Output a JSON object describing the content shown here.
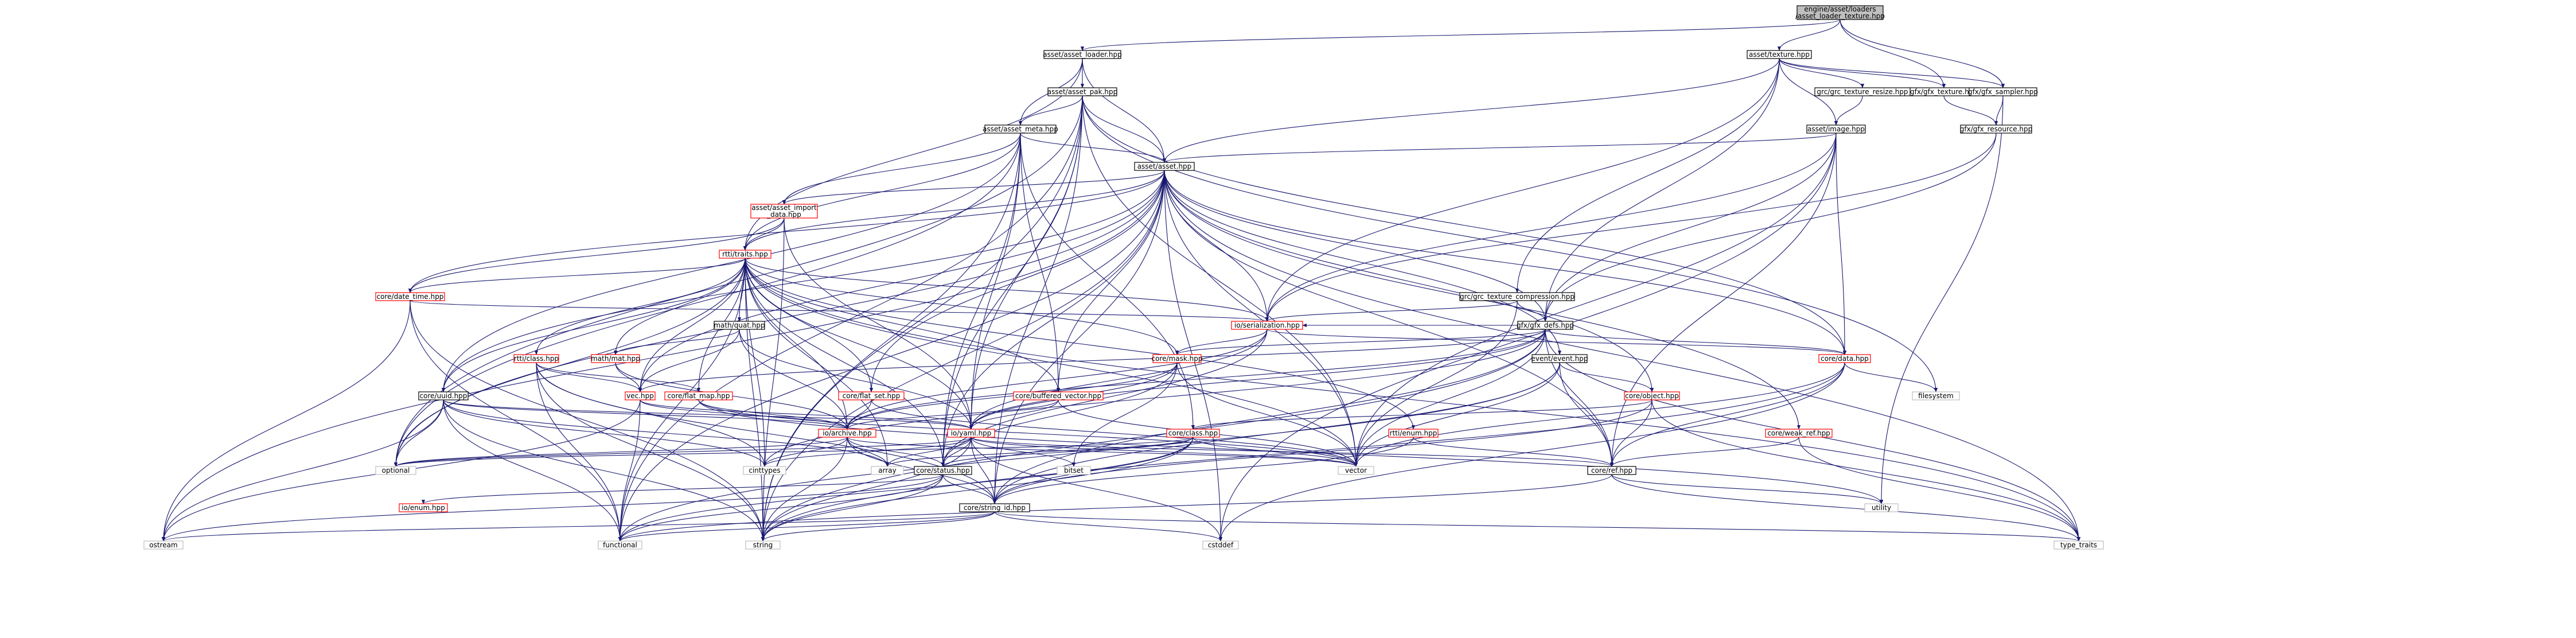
{
  "colors": {
    "edge": "#191970",
    "root_fill": "#bfbfbf",
    "documented_border": "#000000",
    "undocumented_border": "#ff0000",
    "external_border": "#bfbfbf"
  },
  "nodes": [
    {
      "id": "root",
      "lines": [
        "engine/asset/loaders",
        "/asset_loader_texture.hpp"
      ],
      "kind": "root"
    },
    {
      "id": "asset_loader",
      "lines": [
        "asset/asset_loader.hpp"
      ],
      "kind": "doc"
    },
    {
      "id": "asset_texture",
      "lines": [
        "asset/texture.hpp"
      ],
      "kind": "doc"
    },
    {
      "id": "gfx_texture",
      "lines": [
        "gfx/gfx_texture.hpp"
      ],
      "kind": "doc"
    },
    {
      "id": "gfx_sampler",
      "lines": [
        "gfx/gfx_sampler.hpp"
      ],
      "kind": "doc"
    },
    {
      "id": "asset_pak",
      "lines": [
        "asset/asset_pak.hpp"
      ],
      "kind": "doc"
    },
    {
      "id": "grc_texture_resize",
      "lines": [
        "grc/grc_texture_resize.hpp"
      ],
      "kind": "doc"
    },
    {
      "id": "gfx_resource",
      "lines": [
        "gfx/gfx_resource.hpp"
      ],
      "kind": "doc"
    },
    {
      "id": "asset_meta",
      "lines": [
        "asset/asset_meta.hpp"
      ],
      "kind": "doc"
    },
    {
      "id": "asset_image",
      "lines": [
        "asset/image.hpp"
      ],
      "kind": "doc"
    },
    {
      "id": "asset_asset",
      "lines": [
        "asset/asset.hpp"
      ],
      "kind": "doc"
    },
    {
      "id": "asset_import_data",
      "lines": [
        "asset/asset_import",
        "_data.hpp"
      ],
      "kind": "red"
    },
    {
      "id": "rtti_traits",
      "lines": [
        "rtti/traits.hpp"
      ],
      "kind": "red"
    },
    {
      "id": "core_date_time",
      "lines": [
        "core/date_time.hpp"
      ],
      "kind": "red"
    },
    {
      "id": "grc_texture_compression",
      "lines": [
        "grc/grc_texture_compression.hpp"
      ],
      "kind": "doc"
    },
    {
      "id": "io_serialization",
      "lines": [
        "io/serialization.hpp"
      ],
      "kind": "red"
    },
    {
      "id": "math_quat",
      "lines": [
        "math/quat.hpp"
      ],
      "kind": "doc"
    },
    {
      "id": "gfx_defs",
      "lines": [
        "gfx/gfx_defs.hpp"
      ],
      "kind": "doc"
    },
    {
      "id": "rtti_class",
      "lines": [
        "rtti/class.hpp"
      ],
      "kind": "red"
    },
    {
      "id": "math_mat",
      "lines": [
        "math/mat.hpp"
      ],
      "kind": "red"
    },
    {
      "id": "core_mask",
      "lines": [
        "core/mask.hpp"
      ],
      "kind": "red"
    },
    {
      "id": "event_event",
      "lines": [
        "event/event.hpp"
      ],
      "kind": "doc"
    },
    {
      "id": "core_data",
      "lines": [
        "core/data.hpp"
      ],
      "kind": "red"
    },
    {
      "id": "vec",
      "lines": [
        "vec.hpp"
      ],
      "kind": "red"
    },
    {
      "id": "core_flat_set",
      "lines": [
        "core/flat_set.hpp"
      ],
      "kind": "red"
    },
    {
      "id": "core_uuid",
      "lines": [
        "core/uuid.hpp"
      ],
      "kind": "doc"
    },
    {
      "id": "core_flat_map",
      "lines": [
        "core/flat_map.hpp"
      ],
      "kind": "red"
    },
    {
      "id": "core_buffered_vector",
      "lines": [
        "core/buffered_vector.hpp"
      ],
      "kind": "red"
    },
    {
      "id": "core_object",
      "lines": [
        "core/object.hpp"
      ],
      "kind": "red"
    },
    {
      "id": "filesystem",
      "lines": [
        "filesystem"
      ],
      "kind": "sys"
    },
    {
      "id": "io_archive",
      "lines": [
        "io/archive.hpp"
      ],
      "kind": "red"
    },
    {
      "id": "io_yaml",
      "lines": [
        "io/yaml.hpp"
      ],
      "kind": "red"
    },
    {
      "id": "core_class",
      "lines": [
        "core/class.hpp"
      ],
      "kind": "red"
    },
    {
      "id": "rtti_enum",
      "lines": [
        "rtti/enum.hpp"
      ],
      "kind": "red"
    },
    {
      "id": "core_weak_ref",
      "lines": [
        "core/weak_ref.hpp"
      ],
      "kind": "red"
    },
    {
      "id": "optional",
      "lines": [
        "optional"
      ],
      "kind": "sys"
    },
    {
      "id": "cinttypes",
      "lines": [
        "cinttypes"
      ],
      "kind": "sys"
    },
    {
      "id": "array",
      "lines": [
        "array"
      ],
      "kind": "sys"
    },
    {
      "id": "core_status",
      "lines": [
        "core/status.hpp"
      ],
      "kind": "doc"
    },
    {
      "id": "bitset",
      "lines": [
        "bitset"
      ],
      "kind": "sys"
    },
    {
      "id": "vector",
      "lines": [
        "vector"
      ],
      "kind": "sys"
    },
    {
      "id": "core_ref",
      "lines": [
        "core/ref.hpp"
      ],
      "kind": "doc"
    },
    {
      "id": "io_enum",
      "lines": [
        "io/enum.hpp"
      ],
      "kind": "red"
    },
    {
      "id": "core_string_id",
      "lines": [
        "core/string_id.hpp"
      ],
      "kind": "doc"
    },
    {
      "id": "utility",
      "lines": [
        "utility"
      ],
      "kind": "sys"
    },
    {
      "id": "ostream",
      "lines": [
        "ostream"
      ],
      "kind": "sys"
    },
    {
      "id": "functional",
      "lines": [
        "functional"
      ],
      "kind": "sys"
    },
    {
      "id": "string",
      "lines": [
        "string"
      ],
      "kind": "sys"
    },
    {
      "id": "cstddef",
      "lines": [
        "cstddef"
      ],
      "kind": "sys"
    },
    {
      "id": "type_traits",
      "lines": [
        "type_traits"
      ],
      "kind": "sys"
    }
  ],
  "edges": [
    [
      "root",
      "asset_loader"
    ],
    [
      "root",
      "asset_texture"
    ],
    [
      "root",
      "gfx_texture"
    ],
    [
      "root",
      "gfx_sampler"
    ],
    [
      "asset_loader",
      "asset_pak"
    ],
    [
      "asset_loader",
      "asset_meta"
    ],
    [
      "asset_loader",
      "asset_asset"
    ],
    [
      "asset_loader",
      "rtti_traits"
    ],
    [
      "asset_texture",
      "asset_asset"
    ],
    [
      "asset_texture",
      "gfx_texture"
    ],
    [
      "asset_texture",
      "gfx_sampler"
    ],
    [
      "asset_texture",
      "asset_image"
    ],
    [
      "asset_texture",
      "gfx_defs"
    ],
    [
      "asset_texture",
      "io_serialization"
    ],
    [
      "asset_texture",
      "grc_texture_resize"
    ],
    [
      "asset_texture",
      "grc_texture_compression"
    ],
    [
      "gfx_texture",
      "gfx_resource"
    ],
    [
      "gfx_sampler",
      "gfx_resource"
    ],
    [
      "gfx_sampler",
      "utility"
    ],
    [
      "gfx_resource",
      "gfx_defs"
    ],
    [
      "gfx_resource",
      "io_serialization"
    ],
    [
      "grc_texture_resize",
      "asset_image"
    ],
    [
      "asset_pak",
      "asset_meta"
    ],
    [
      "asset_pak",
      "asset_asset"
    ],
    [
      "asset_pak",
      "io_yaml"
    ],
    [
      "asset_pak",
      "core_status"
    ],
    [
      "asset_pak",
      "optional"
    ],
    [
      "asset_pak",
      "string"
    ],
    [
      "asset_pak",
      "vector"
    ],
    [
      "asset_pak",
      "filesystem"
    ],
    [
      "asset_pak",
      "core_data"
    ],
    [
      "asset_pak",
      "core_string_id"
    ],
    [
      "asset_pak",
      "functional"
    ],
    [
      "asset_meta",
      "asset_asset"
    ],
    [
      "asset_meta",
      "asset_import_data"
    ],
    [
      "asset_meta",
      "rtti_traits"
    ],
    [
      "asset_meta",
      "core_uuid"
    ],
    [
      "asset_meta",
      "core_buffered_vector"
    ],
    [
      "asset_meta",
      "io_yaml"
    ],
    [
      "asset_meta",
      "core_class"
    ],
    [
      "asset_meta",
      "core_status"
    ],
    [
      "asset_meta",
      "string"
    ],
    [
      "asset_meta",
      "optional"
    ],
    [
      "asset_image",
      "asset_asset"
    ],
    [
      "asset_image",
      "core_data"
    ],
    [
      "asset_image",
      "gfx_defs"
    ],
    [
      "asset_image",
      "io_serialization"
    ],
    [
      "asset_image",
      "core_ref"
    ],
    [
      "asset_image",
      "vector"
    ],
    [
      "asset_image",
      "cstddef"
    ],
    [
      "asset_asset",
      "asset_import_data"
    ],
    [
      "asset_asset",
      "rtti_traits"
    ],
    [
      "asset_asset",
      "core_date_time"
    ],
    [
      "asset_asset",
      "io_serialization"
    ],
    [
      "asset_asset",
      "core_object"
    ],
    [
      "asset_asset",
      "core_uuid"
    ],
    [
      "asset_asset",
      "core_ref"
    ],
    [
      "asset_asset",
      "core_data"
    ],
    [
      "asset_asset",
      "core_string_id"
    ],
    [
      "asset_asset",
      "core_status"
    ],
    [
      "asset_asset",
      "gfx_defs"
    ],
    [
      "asset_asset",
      "event_event"
    ],
    [
      "asset_asset",
      "core_flat_set"
    ],
    [
      "asset_asset",
      "core_buffered_vector"
    ],
    [
      "asset_asset",
      "vec"
    ],
    [
      "asset_asset",
      "core_weak_ref"
    ],
    [
      "asset_asset",
      "vector"
    ],
    [
      "asset_asset",
      "string"
    ],
    [
      "asset_asset",
      "optional"
    ],
    [
      "asset_asset",
      "ostream"
    ],
    [
      "asset_asset",
      "type_traits"
    ],
    [
      "asset_asset",
      "functional"
    ],
    [
      "asset_asset",
      "cstddef"
    ],
    [
      "asset_import_data",
      "rtti_traits"
    ],
    [
      "asset_import_data",
      "core_date_time"
    ],
    [
      "asset_import_data",
      "io_yaml"
    ],
    [
      "asset_import_data",
      "string"
    ],
    [
      "rtti_traits",
      "core_date_time"
    ],
    [
      "rtti_traits",
      "math_quat"
    ],
    [
      "rtti_traits",
      "math_mat"
    ],
    [
      "rtti_traits",
      "rtti_class"
    ],
    [
      "rtti_traits",
      "rtti_enum"
    ],
    [
      "rtti_traits",
      "io_serialization"
    ],
    [
      "rtti_traits",
      "core_uuid"
    ],
    [
      "rtti_traits",
      "core_flat_map"
    ],
    [
      "rtti_traits",
      "core_flat_set"
    ],
    [
      "rtti_traits",
      "core_buffered_vector"
    ],
    [
      "rtti_traits",
      "core_mask"
    ],
    [
      "rtti_traits",
      "vec"
    ],
    [
      "rtti_traits",
      "io_archive"
    ],
    [
      "rtti_traits",
      "io_yaml"
    ],
    [
      "rtti_traits",
      "core_status"
    ],
    [
      "rtti_traits",
      "vector"
    ],
    [
      "rtti_traits",
      "string"
    ],
    [
      "rtti_traits",
      "optional"
    ],
    [
      "rtti_traits",
      "cinttypes"
    ],
    [
      "rtti_traits",
      "array"
    ],
    [
      "rtti_traits",
      "type_traits"
    ],
    [
      "rtti_traits",
      "functional"
    ],
    [
      "core_date_time",
      "io_serialization"
    ],
    [
      "core_date_time",
      "ostream"
    ],
    [
      "core_date_time",
      "string"
    ],
    [
      "core_date_time",
      "functional"
    ],
    [
      "grc_texture_compression",
      "gfx_defs"
    ],
    [
      "grc_texture_compression",
      "io_serialization"
    ],
    [
      "grc_texture_compression",
      "vector"
    ],
    [
      "io_serialization",
      "io_archive"
    ],
    [
      "io_serialization",
      "io_yaml"
    ],
    [
      "io_serialization",
      "core_mask"
    ],
    [
      "io_serialization",
      "core_data"
    ],
    [
      "io_serialization",
      "core_status"
    ],
    [
      "math_quat",
      "vec"
    ],
    [
      "math_quat",
      "math_mat"
    ],
    [
      "math_quat",
      "io_archive"
    ],
    [
      "math_quat",
      "io_yaml"
    ],
    [
      "gfx_defs",
      "core_mask"
    ],
    [
      "gfx_defs",
      "core_data"
    ],
    [
      "gfx_defs",
      "core_ref"
    ],
    [
      "gfx_defs",
      "io_serialization"
    ],
    [
      "gfx_defs",
      "core_string_id"
    ],
    [
      "gfx_defs",
      "vec"
    ],
    [
      "gfx_defs",
      "io_archive"
    ],
    [
      "gfx_defs",
      "io_yaml"
    ],
    [
      "gfx_defs",
      "vector"
    ],
    [
      "gfx_defs",
      "cinttypes"
    ],
    [
      "gfx_defs",
      "string"
    ],
    [
      "gfx_defs",
      "type_traits"
    ],
    [
      "rtti_class",
      "core_flat_map"
    ],
    [
      "rtti_class",
      "vec"
    ],
    [
      "rtti_class",
      "core_string_id"
    ],
    [
      "rtti_class",
      "string"
    ],
    [
      "rtti_class",
      "functional"
    ],
    [
      "rtti_class",
      "cinttypes"
    ],
    [
      "math_mat",
      "vec"
    ],
    [
      "math_mat",
      "io_archive"
    ],
    [
      "core_mask",
      "io_archive"
    ],
    [
      "core_mask",
      "io_yaml"
    ],
    [
      "core_mask",
      "core_status"
    ],
    [
      "core_mask",
      "bitset"
    ],
    [
      "core_mask",
      "vector"
    ],
    [
      "event_event",
      "core_object"
    ],
    [
      "event_event",
      "core_ref"
    ],
    [
      "event_event",
      "core_string_id"
    ],
    [
      "event_event",
      "vector"
    ],
    [
      "event_event",
      "functional"
    ],
    [
      "core_data",
      "core_ref"
    ],
    [
      "core_data",
      "filesystem"
    ],
    [
      "core_data",
      "string"
    ],
    [
      "core_data",
      "vector"
    ],
    [
      "core_data",
      "cstddef"
    ],
    [
      "vec",
      "io_archive"
    ],
    [
      "vec",
      "io_yaml"
    ],
    [
      "vec",
      "functional"
    ],
    [
      "vec",
      "ostream"
    ],
    [
      "core_flat_set",
      "io_archive"
    ],
    [
      "core_flat_set",
      "vector"
    ],
    [
      "core_uuid",
      "io_archive"
    ],
    [
      "core_uuid",
      "io_yaml"
    ],
    [
      "core_uuid",
      "array"
    ],
    [
      "core_uuid",
      "cinttypes"
    ],
    [
      "core_uuid",
      "optional"
    ],
    [
      "core_uuid",
      "string"
    ],
    [
      "core_uuid",
      "ostream"
    ],
    [
      "core_uuid",
      "functional"
    ],
    [
      "core_flat_map",
      "io_archive"
    ],
    [
      "core_flat_map",
      "vector"
    ],
    [
      "core_flat_map",
      "utility"
    ],
    [
      "core_buffered_vector",
      "io_archive"
    ],
    [
      "core_buffered_vector",
      "io_yaml"
    ],
    [
      "core_buffered_vector",
      "vector"
    ],
    [
      "core_object",
      "core_class"
    ],
    [
      "core_object",
      "core_ref"
    ],
    [
      "core_object",
      "core_string_id"
    ],
    [
      "core_object",
      "type_traits"
    ],
    [
      "io_archive",
      "core_status"
    ],
    [
      "io_archive",
      "core_string_id"
    ],
    [
      "io_archive",
      "optional"
    ],
    [
      "io_archive",
      "cinttypes"
    ],
    [
      "io_archive",
      "array"
    ],
    [
      "io_archive",
      "vector"
    ],
    [
      "io_archive",
      "string"
    ],
    [
      "io_yaml",
      "core_status"
    ],
    [
      "io_yaml",
      "core_string_id"
    ],
    [
      "io_yaml",
      "core_ref"
    ],
    [
      "io_yaml",
      "bitset"
    ],
    [
      "io_yaml",
      "array"
    ],
    [
      "io_yaml",
      "cinttypes"
    ],
    [
      "io_yaml",
      "optional"
    ],
    [
      "io_yaml",
      "vector"
    ],
    [
      "io_yaml",
      "string"
    ],
    [
      "io_yaml",
      "cstddef"
    ],
    [
      "core_class",
      "core_status"
    ],
    [
      "core_class",
      "core_string_id"
    ],
    [
      "core_class",
      "array"
    ],
    [
      "core_class",
      "optional"
    ],
    [
      "core_class",
      "vector"
    ],
    [
      "core_class",
      "string"
    ],
    [
      "core_class",
      "functional"
    ],
    [
      "rtti_enum",
      "core_string_id"
    ],
    [
      "rtti_enum",
      "core_ref"
    ],
    [
      "core_weak_ref",
      "core_ref"
    ],
    [
      "core_weak_ref",
      "type_traits"
    ],
    [
      "core_status",
      "io_enum"
    ],
    [
      "core_status",
      "core_string_id"
    ],
    [
      "core_status",
      "string"
    ],
    [
      "core_status",
      "ostream"
    ],
    [
      "core_status",
      "functional"
    ],
    [
      "core_ref",
      "utility"
    ],
    [
      "core_ref",
      "type_traits"
    ],
    [
      "core_ref",
      "functional"
    ],
    [
      "core_string_id",
      "string"
    ],
    [
      "core_string_id",
      "cstddef"
    ],
    [
      "core_string_id",
      "ostream"
    ],
    [
      "core_string_id",
      "functional"
    ],
    [
      "core_string_id",
      "type_traits"
    ]
  ]
}
